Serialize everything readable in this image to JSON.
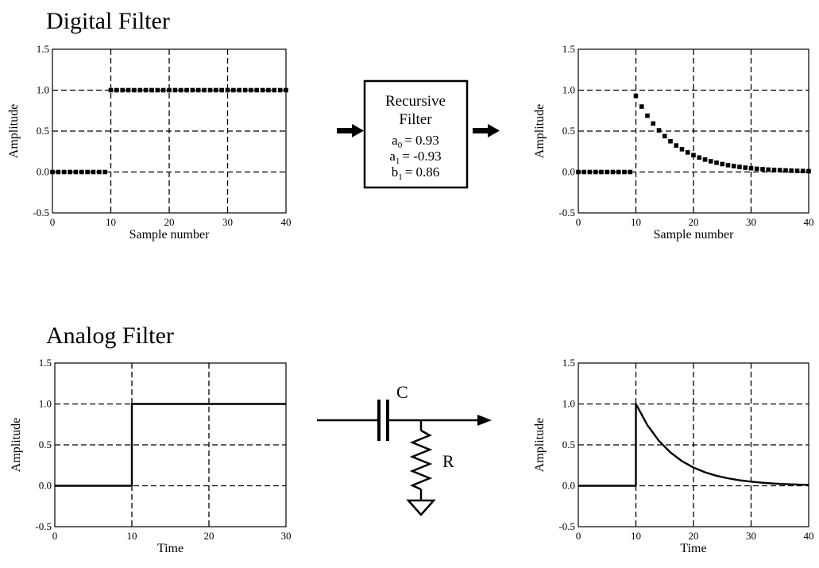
{
  "sections": {
    "digital_title": "Digital Filter",
    "analog_title": "Analog Filter"
  },
  "filter_box": {
    "line1": "Recursive",
    "line2": "Filter",
    "coefs": [
      {
        "sym": "a",
        "sub": "0",
        "eq": "= 0.93"
      },
      {
        "sym": "a",
        "sub": "1",
        "eq": "= -0.93"
      },
      {
        "sym": "b",
        "sub": "1",
        "eq": "= 0.86"
      }
    ]
  },
  "circuit": {
    "capacitor_label": "C",
    "resistor_label": "R"
  },
  "chart_data": [
    {
      "id": "digital_input",
      "type": "scatter",
      "ylabel": "Amplitude",
      "xlabel": "Sample number",
      "xlim": [
        0,
        40
      ],
      "ylim": [
        -0.5,
        1.5
      ],
      "xticks": [
        0,
        10,
        20,
        30,
        40
      ],
      "yticks": [
        -0.5,
        0.0,
        0.5,
        1.0,
        1.5
      ],
      "ytick_labels": [
        "-0.5",
        "0.0",
        "0.5",
        "1.0",
        "1.5"
      ],
      "grid": true,
      "series": [
        {
          "x": [
            0,
            1,
            2,
            3,
            4,
            5,
            6,
            7,
            8,
            9,
            10,
            11,
            12,
            13,
            14,
            15,
            16,
            17,
            18,
            19,
            20,
            21,
            22,
            23,
            24,
            25,
            26,
            27,
            28,
            29,
            30,
            31,
            32,
            33,
            34,
            35,
            36,
            37,
            38,
            39,
            40
          ],
          "values": [
            0,
            0,
            0,
            0,
            0,
            0,
            0,
            0,
            0,
            0,
            1,
            1,
            1,
            1,
            1,
            1,
            1,
            1,
            1,
            1,
            1,
            1,
            1,
            1,
            1,
            1,
            1,
            1,
            1,
            1,
            1,
            1,
            1,
            1,
            1,
            1,
            1,
            1,
            1,
            1,
            1
          ]
        }
      ]
    },
    {
      "id": "digital_output",
      "type": "scatter",
      "ylabel": "Amplitude",
      "xlabel": "Sample number",
      "xlim": [
        0,
        40
      ],
      "ylim": [
        -0.5,
        1.5
      ],
      "xticks": [
        0,
        10,
        20,
        30,
        40
      ],
      "yticks": [
        -0.5,
        0.0,
        0.5,
        1.0,
        1.5
      ],
      "ytick_labels": [
        "-0.5",
        "0.0",
        "0.5",
        "1.0",
        "1.5"
      ],
      "grid": true,
      "series": [
        {
          "x": [
            0,
            1,
            2,
            3,
            4,
            5,
            6,
            7,
            8,
            9,
            10,
            11,
            12,
            13,
            14,
            15,
            16,
            17,
            18,
            19,
            20,
            21,
            22,
            23,
            24,
            25,
            26,
            27,
            28,
            29,
            30,
            31,
            32,
            33,
            34,
            35,
            36,
            37,
            38,
            39,
            40
          ],
          "values": [
            0,
            0,
            0,
            0,
            0,
            0,
            0,
            0,
            0,
            0,
            0.93,
            0.8,
            0.688,
            0.592,
            0.509,
            0.438,
            0.376,
            0.324,
            0.278,
            0.239,
            0.206,
            0.177,
            0.152,
            0.131,
            0.113,
            0.097,
            0.083,
            0.072,
            0.062,
            0.053,
            0.046,
            0.039,
            0.034,
            0.029,
            0.025,
            0.022,
            0.019,
            0.016,
            0.014,
            0.012,
            0.01
          ]
        }
      ]
    },
    {
      "id": "analog_input",
      "type": "line",
      "ylabel": "Amplitude",
      "xlabel": "Time",
      "xlim": [
        0,
        30
      ],
      "ylim": [
        -0.5,
        1.5
      ],
      "xticks": [
        0,
        10,
        20,
        30
      ],
      "yticks": [
        -0.5,
        0.0,
        0.5,
        1.0,
        1.5
      ],
      "ytick_labels": [
        "-0.5",
        "0.0",
        "0.5",
        "1.0",
        "1.5"
      ],
      "grid": true,
      "series": [
        {
          "x": [
            0,
            10,
            10,
            30
          ],
          "values": [
            0,
            0,
            1,
            1
          ]
        }
      ]
    },
    {
      "id": "analog_output",
      "type": "line",
      "ylabel": "Amplitude",
      "xlabel": "Time",
      "xlim": [
        0,
        40
      ],
      "ylim": [
        -0.5,
        1.5
      ],
      "xticks": [
        0,
        10,
        20,
        30,
        40
      ],
      "yticks": [
        -0.5,
        0.0,
        0.5,
        1.0,
        1.5
      ],
      "ytick_labels": [
        "-0.5",
        "0.0",
        "0.5",
        "1.0",
        "1.5"
      ],
      "grid": true,
      "series": [
        {
          "x": [
            0,
            10,
            10,
            12,
            14,
            16,
            18,
            20,
            22,
            24,
            26,
            28,
            30,
            32,
            34,
            36,
            38,
            40
          ],
          "values": [
            0,
            0,
            1.0,
            0.741,
            0.549,
            0.407,
            0.301,
            0.223,
            0.165,
            0.122,
            0.091,
            0.067,
            0.05,
            0.037,
            0.027,
            0.02,
            0.015,
            0.011
          ]
        }
      ]
    }
  ]
}
